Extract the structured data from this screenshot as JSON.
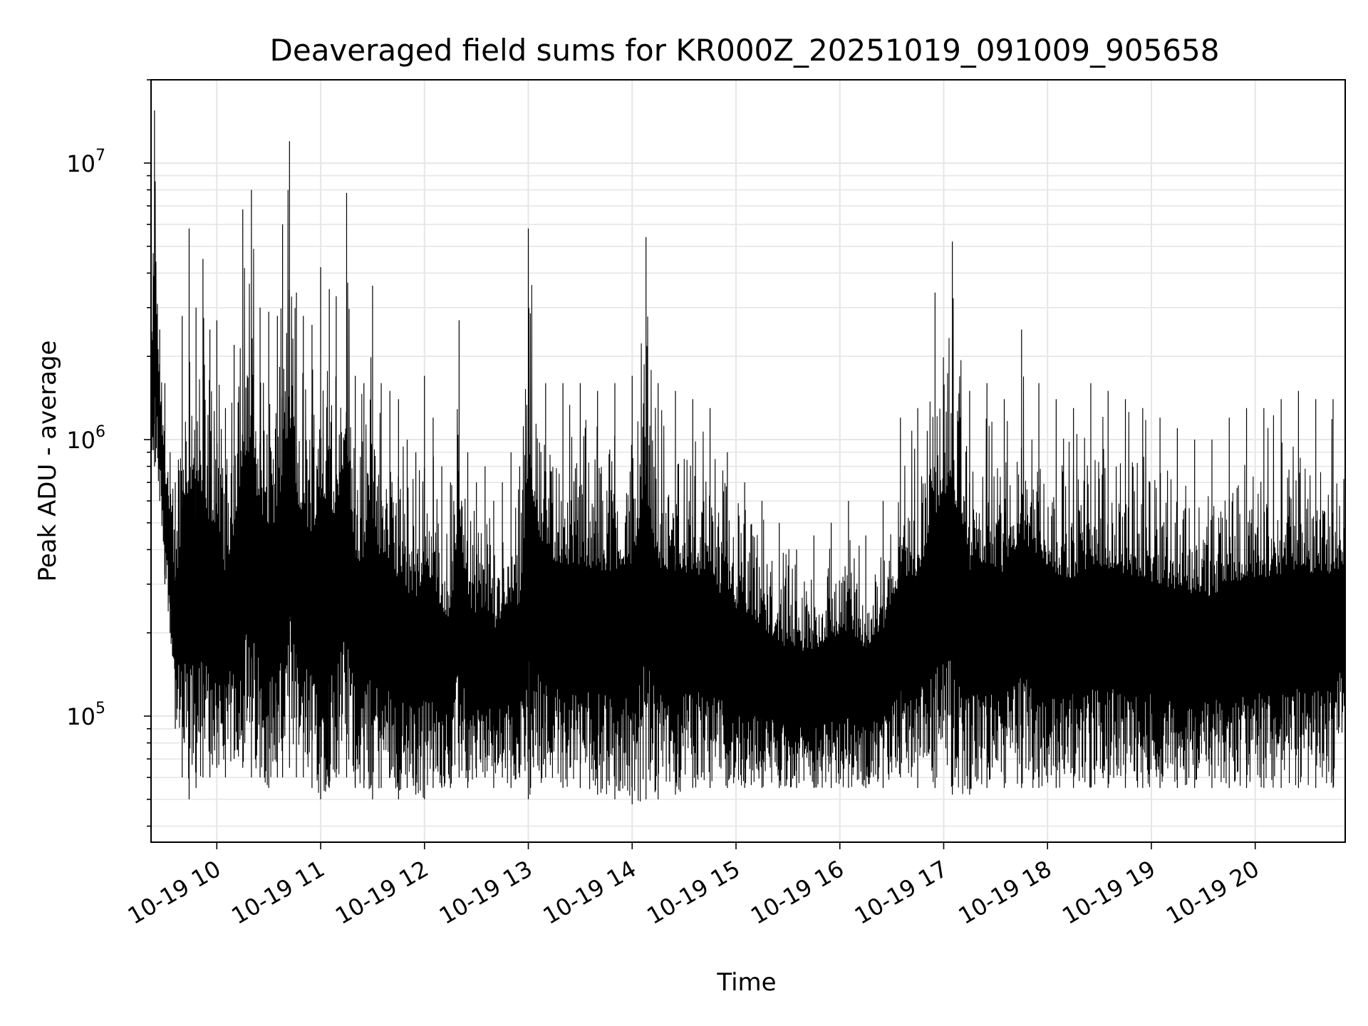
{
  "chart_data": {
    "type": "line",
    "title": "Deaveraged field sums for KR000Z_20251019_091009_905658",
    "xlabel": "Time",
    "ylabel": "Peak ADU - average",
    "yscale": "log",
    "ylim": [
      35000,
      20000000
    ],
    "xlim": [
      "2025-10-19 09:22",
      "2025-10-19 20:52"
    ],
    "grid": true,
    "line_color": "#000000",
    "x_tick_labels": [
      "10-19 10",
      "10-19 11",
      "10-19 12",
      "10-19 13",
      "10-19 14",
      "10-19 15",
      "10-19 16",
      "10-19 17",
      "10-19 18",
      "10-19 19",
      "10-19 20"
    ],
    "y_tick_labels": [
      {
        "value": 100000,
        "base": "10",
        "exp": "5"
      },
      {
        "value": 1000000,
        "base": "10",
        "exp": "6"
      },
      {
        "value": 10000000,
        "base": "10",
        "exp": "7"
      }
    ],
    "series": [
      {
        "x": [
          "2025-10-19 09:22",
          "2025-10-19 09:24",
          "2025-10-19 09:27",
          "2025-10-19 09:30",
          "2025-10-19 09:33",
          "2025-10-19 09:36",
          "2025-10-19 09:40",
          "2025-10-19 09:44",
          "2025-10-19 09:48",
          "2025-10-19 09:52",
          "2025-10-19 09:56",
          "2025-10-19 10:00",
          "2025-10-19 10:05",
          "2025-10-19 10:10",
          "2025-10-19 10:15",
          "2025-10-19 10:20",
          "2025-10-19 10:25",
          "2025-10-19 10:30",
          "2025-10-19 10:35",
          "2025-10-19 10:38",
          "2025-10-19 10:42",
          "2025-10-19 10:46",
          "2025-10-19 10:50",
          "2025-10-19 10:55",
          "2025-10-19 11:00",
          "2025-10-19 11:05",
          "2025-10-19 11:09",
          "2025-10-19 11:15",
          "2025-10-19 11:20",
          "2025-10-19 11:25",
          "2025-10-19 11:30",
          "2025-10-19 11:35",
          "2025-10-19 11:40",
          "2025-10-19 11:45",
          "2025-10-19 11:50",
          "2025-10-19 11:55",
          "2025-10-19 12:00",
          "2025-10-19 12:05",
          "2025-10-19 12:10",
          "2025-10-19 12:15",
          "2025-10-19 12:20",
          "2025-10-19 12:25",
          "2025-10-19 12:30",
          "2025-10-19 12:35",
          "2025-10-19 12:40",
          "2025-10-19 12:45",
          "2025-10-19 12:50",
          "2025-10-19 12:55",
          "2025-10-19 13:00",
          "2025-10-19 13:10",
          "2025-10-19 13:20",
          "2025-10-19 13:30",
          "2025-10-19 13:40",
          "2025-10-19 13:50",
          "2025-10-19 14:00",
          "2025-10-19 14:08",
          "2025-10-19 14:15",
          "2025-10-19 14:25",
          "2025-10-19 14:35",
          "2025-10-19 14:45",
          "2025-10-19 14:55",
          "2025-10-19 15:05",
          "2025-10-19 15:15",
          "2025-10-19 15:25",
          "2025-10-19 15:35",
          "2025-10-19 15:45",
          "2025-10-19 15:55",
          "2025-10-19 16:05",
          "2025-10-19 16:15",
          "2025-10-19 16:25",
          "2025-10-19 16:35",
          "2025-10-19 16:45",
          "2025-10-19 16:55",
          "2025-10-19 17:05",
          "2025-10-19 17:15",
          "2025-10-19 17:25",
          "2025-10-19 17:35",
          "2025-10-19 17:45",
          "2025-10-19 17:55",
          "2025-10-19 18:05",
          "2025-10-19 18:15",
          "2025-10-19 18:25",
          "2025-10-19 18:35",
          "2025-10-19 18:45",
          "2025-10-19 18:55",
          "2025-10-19 19:05",
          "2025-10-19 19:15",
          "2025-10-19 19:25",
          "2025-10-19 19:35",
          "2025-10-19 19:45",
          "2025-10-19 19:55",
          "2025-10-19 20:05",
          "2025-10-19 20:15",
          "2025-10-19 20:25",
          "2025-10-19 20:35",
          "2025-10-19 20:45",
          "2025-10-19 20:52"
        ],
        "high": [
          2000000,
          15500000,
          2500000,
          1600000,
          900000,
          700000,
          2800000,
          5800000,
          3000000,
          4500000,
          2500000,
          2700000,
          1300000,
          2200000,
          6800000,
          8000000,
          3000000,
          2900000,
          2800000,
          6000000,
          12000000,
          3400000,
          2800000,
          2600000,
          4200000,
          3500000,
          3300000,
          7800000,
          1700000,
          1600000,
          3600000,
          1600000,
          1500000,
          1400000,
          1000000,
          900000,
          1700000,
          1200000,
          800000,
          700000,
          2700000,
          900000,
          700000,
          800000,
          600000,
          700000,
          900000,
          800000,
          5800000,
          1600000,
          1600000,
          1600000,
          1500000,
          1600000,
          1700000,
          5400000,
          1600000,
          1500000,
          1400000,
          1300000,
          900000,
          700000,
          600000,
          500000,
          400000,
          450000,
          500000,
          600000,
          450000,
          600000,
          1200000,
          1300000,
          3400000,
          5200000,
          1500000,
          1600000,
          1400000,
          2500000,
          1600000,
          1400000,
          1300000,
          1600000,
          1500000,
          1400000,
          1300000,
          1200000,
          1100000,
          1000000,
          1000000,
          1200000,
          1300000,
          1300000,
          1400000,
          1500000,
          1400000,
          1400000,
          1000000
        ],
        "low": [
          700000,
          800000,
          600000,
          300000,
          200000,
          90000,
          60000,
          50000,
          55000,
          60000,
          60000,
          65000,
          60000,
          70000,
          65000,
          60000,
          60000,
          55000,
          60000,
          60000,
          65000,
          60000,
          60000,
          55000,
          50000,
          55000,
          60000,
          60000,
          55000,
          55000,
          50000,
          55000,
          60000,
          50000,
          55000,
          52000,
          50000,
          55000,
          55000,
          55000,
          60000,
          55000,
          60000,
          60000,
          55000,
          60000,
          55000,
          60000,
          50000,
          60000,
          55000,
          55000,
          52000,
          50000,
          48000,
          50000,
          50000,
          52000,
          55000,
          55000,
          55000,
          55000,
          55000,
          55000,
          55000,
          55000,
          55000,
          55000,
          55000,
          55000,
          60000,
          55000,
          55000,
          52000,
          52000,
          55000,
          55000,
          55000,
          55000,
          55000,
          55000,
          55000,
          55000,
          55000,
          55000,
          55000,
          55000,
          55000,
          55000,
          55000,
          55000,
          55000,
          55000,
          55000,
          55000,
          55000,
          100000
        ]
      }
    ]
  }
}
